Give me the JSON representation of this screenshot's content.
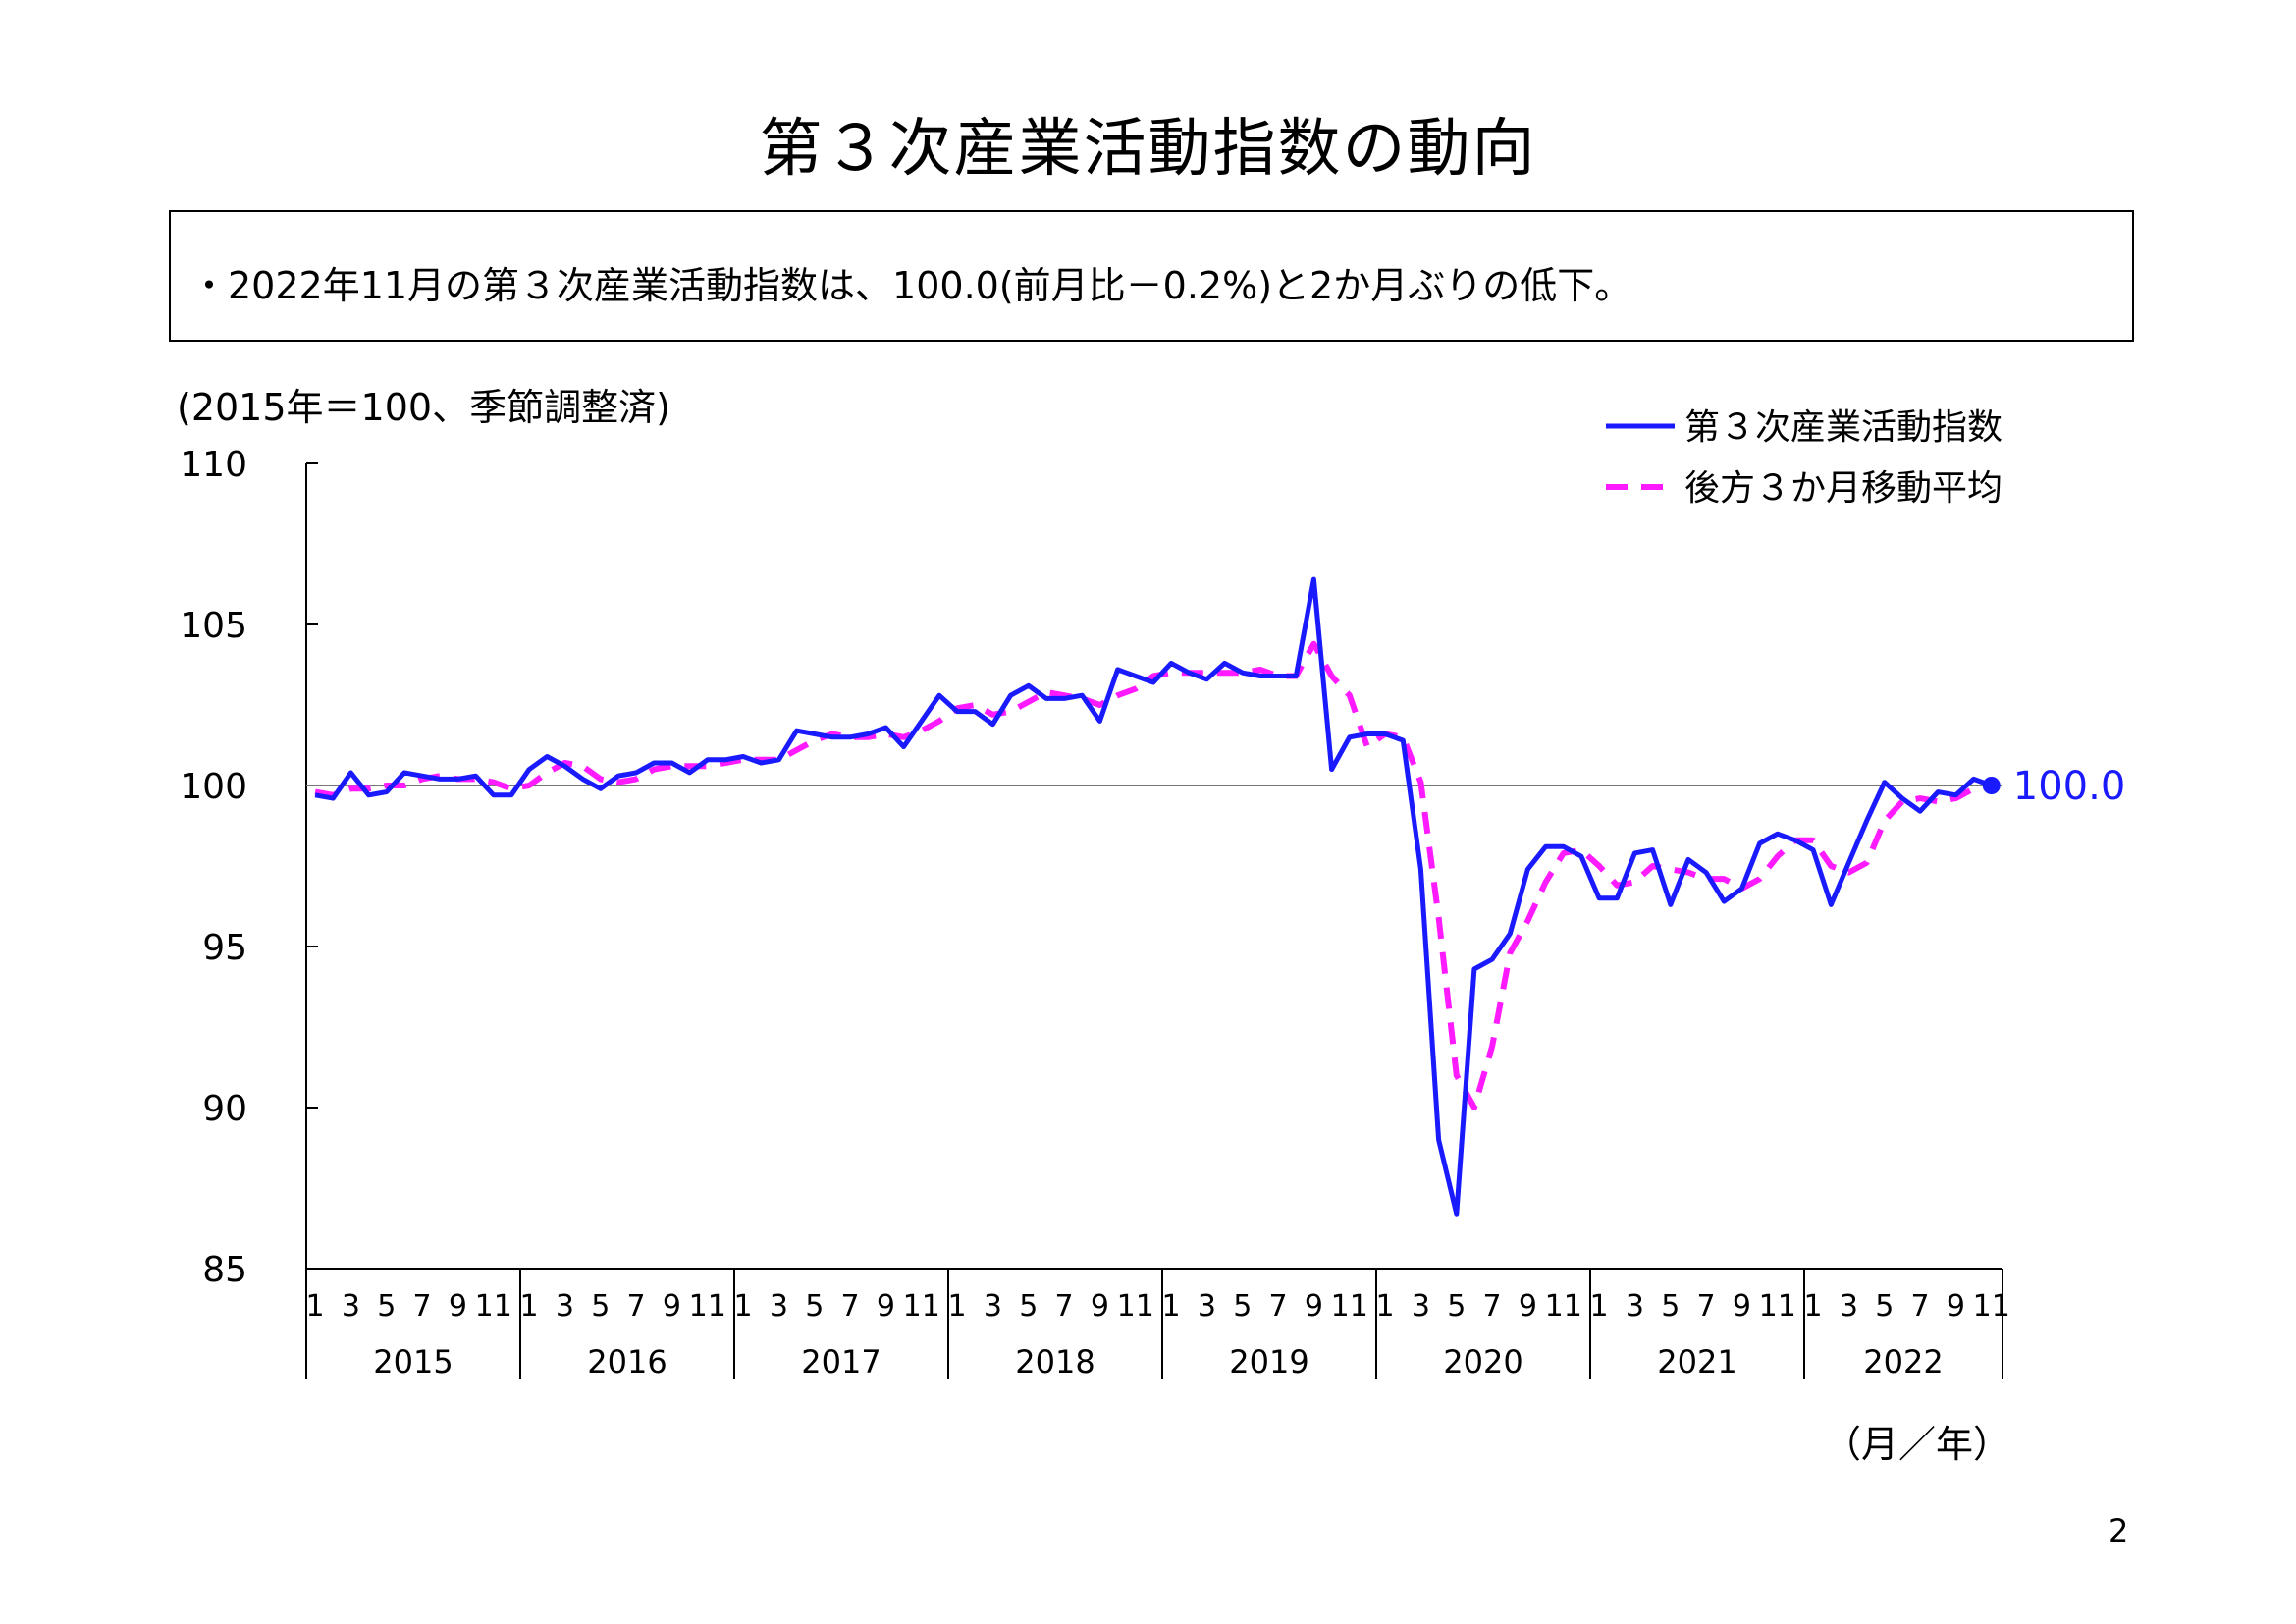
{
  "page": {
    "title": "第３次産業活動指数の動向",
    "summary": "・2022年11月の第３次産業活動指数は、100.0(前月比－0.2%)と2か月ぶりの低下。",
    "unit_note": "(2015年＝100、季節調整済)",
    "axis_unit": "（月／年）",
    "page_number": "2"
  },
  "chart_data": {
    "type": "line",
    "title": "",
    "xlabel": "（月／年）",
    "ylabel": "",
    "ylim": [
      85,
      110
    ],
    "yticks": [
      "85",
      "90",
      "95",
      "100",
      "105",
      "110"
    ],
    "reference_line": 100,
    "grid": false,
    "legend_position": "top-right",
    "years": [
      "2015",
      "2016",
      "2017",
      "2018",
      "2019",
      "2020",
      "2021",
      "2022"
    ],
    "month_tick_labels": [
      "1",
      "3",
      "5",
      "7",
      "9",
      "11"
    ],
    "start": "2015-01",
    "end": "2022-11",
    "latest_label": "100.0",
    "colors": {
      "index": "#1a1aff",
      "moving_average": "#ff1aff"
    },
    "series": [
      {
        "name": "第３次産業活動指数",
        "style": "solid",
        "values": [
          99.7,
          99.6,
          100.4,
          99.7,
          99.8,
          100.4,
          100.3,
          100.2,
          100.2,
          100.3,
          99.7,
          99.7,
          100.5,
          100.9,
          100.6,
          100.2,
          99.9,
          100.3,
          100.4,
          100.7,
          100.7,
          100.4,
          100.8,
          100.8,
          100.9,
          100.7,
          100.8,
          101.7,
          101.6,
          101.5,
          101.5,
          101.6,
          101.8,
          101.2,
          102.0,
          102.8,
          102.3,
          102.3,
          101.9,
          102.8,
          103.1,
          102.7,
          102.7,
          102.8,
          102.0,
          103.6,
          103.4,
          103.2,
          103.8,
          103.5,
          103.3,
          103.8,
          103.5,
          103.4,
          103.4,
          103.4,
          106.4,
          100.5,
          101.5,
          101.6,
          101.6,
          101.4,
          97.4,
          89.0,
          86.7,
          94.3,
          94.6,
          95.4,
          97.4,
          98.1,
          98.1,
          97.8,
          96.5,
          96.5,
          97.9,
          98.0,
          96.3,
          97.7,
          97.3,
          96.4,
          96.8,
          98.2,
          98.5,
          98.3,
          98.0,
          96.3,
          97.6,
          98.9,
          100.1,
          99.6,
          99.2,
          99.8,
          99.7,
          100.2,
          100.0
        ]
      },
      {
        "name": "後方３か月移動平均",
        "style": "dashed",
        "values": [
          99.8,
          99.7,
          99.9,
          99.9,
          100.0,
          100.0,
          100.2,
          100.3,
          100.2,
          100.2,
          100.1,
          99.9,
          100.0,
          100.4,
          100.7,
          100.6,
          100.2,
          100.1,
          100.2,
          100.5,
          100.6,
          100.6,
          100.6,
          100.7,
          100.8,
          100.8,
          100.8,
          101.1,
          101.4,
          101.6,
          101.5,
          101.5,
          101.6,
          101.5,
          101.7,
          102.0,
          102.4,
          102.5,
          102.2,
          102.3,
          102.6,
          102.9,
          102.8,
          102.7,
          102.5,
          102.8,
          103.0,
          103.4,
          103.5,
          103.5,
          103.5,
          103.5,
          103.5,
          103.6,
          103.4,
          103.4,
          104.4,
          103.4,
          102.8,
          101.2,
          101.6,
          101.5,
          100.1,
          95.9,
          91.0,
          90.0,
          91.9,
          94.8,
          95.8,
          97.0,
          97.9,
          98.0,
          97.5,
          96.9,
          97.0,
          97.5,
          97.4,
          97.3,
          97.1,
          97.1,
          96.8,
          97.1,
          97.8,
          98.3,
          98.3,
          97.5,
          97.3,
          97.6,
          98.9,
          99.5,
          99.6,
          99.5,
          99.6,
          99.9,
          100.0
        ]
      }
    ]
  }
}
